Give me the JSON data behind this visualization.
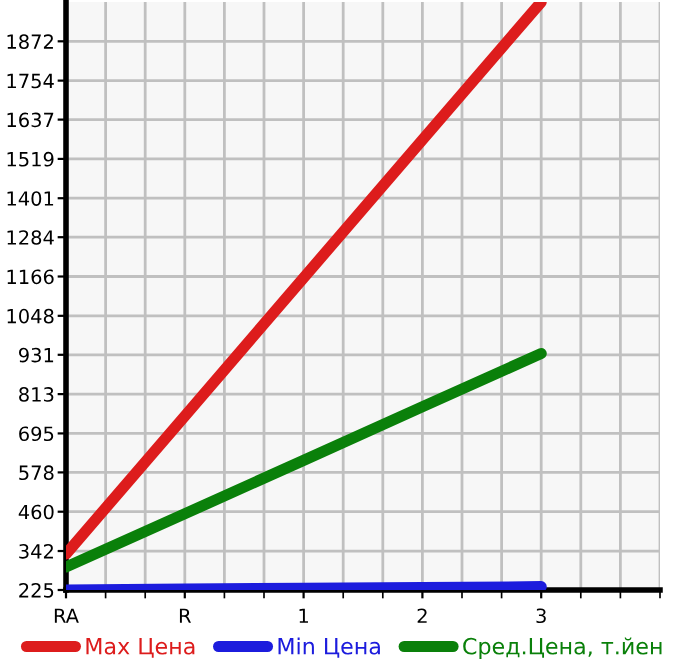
{
  "chart_data": {
    "type": "line",
    "categories": [
      "RA",
      "R",
      "1",
      "2",
      "3"
    ],
    "series": [
      {
        "name": "Max Цена",
        "color": "#dd1c1c",
        "values": [
          333,
          747,
          1162,
          1576,
          1990
        ]
      },
      {
        "name": "Min Цена",
        "color": "#1c1cdd",
        "values": [
          225,
          228,
          230,
          232,
          235
        ]
      },
      {
        "name": "Сред.Цена, т.йен",
        "color": "#0a800a",
        "values": [
          294,
          454,
          614,
          775,
          935
        ]
      }
    ],
    "ylim": [
      225,
      1990
    ],
    "yticks": [
      225,
      342,
      460,
      578,
      695,
      813,
      931,
      1048,
      1166,
      1284,
      1401,
      1519,
      1637,
      1754,
      1872
    ],
    "grid": true,
    "legend": "bottom",
    "marker": "none",
    "line_style": "solid"
  }
}
